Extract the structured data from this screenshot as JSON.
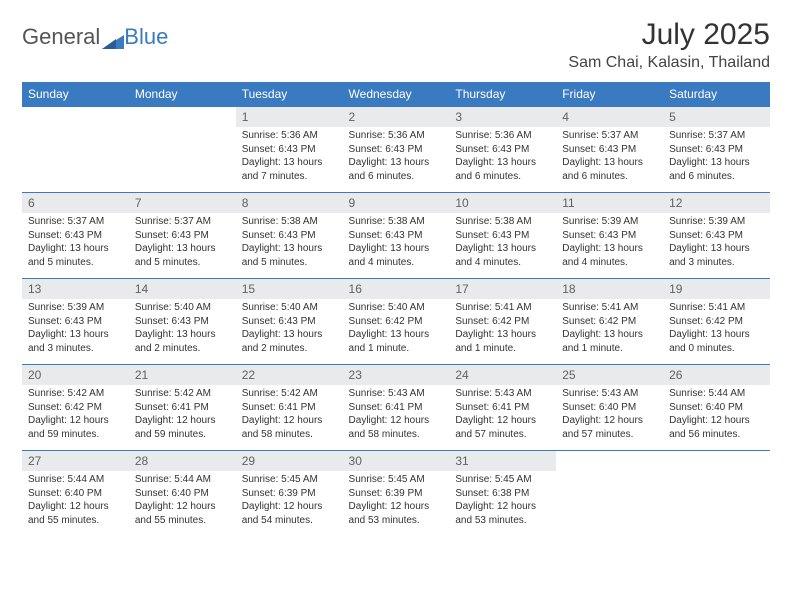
{
  "brand": {
    "part1": "General",
    "part2": "Blue"
  },
  "title": "July 2025",
  "location": "Sam Chai, Kalasin, Thailand",
  "colors": {
    "header_bg": "#3a7ac0",
    "header_text": "#ffffff",
    "daynum_bg": "#e9eaeb",
    "daynum_text": "#616161",
    "border": "#3a7ac0",
    "body_text": "#333333",
    "title_text": "#333333"
  },
  "day_headers": [
    "Sunday",
    "Monday",
    "Tuesday",
    "Wednesday",
    "Thursday",
    "Friday",
    "Saturday"
  ],
  "weeks": [
    [
      {
        "n": "",
        "empty": true
      },
      {
        "n": "",
        "empty": true
      },
      {
        "n": "1",
        "sunrise": "Sunrise: 5:36 AM",
        "sunset": "Sunset: 6:43 PM",
        "daylight": "Daylight: 13 hours and 7 minutes."
      },
      {
        "n": "2",
        "sunrise": "Sunrise: 5:36 AM",
        "sunset": "Sunset: 6:43 PM",
        "daylight": "Daylight: 13 hours and 6 minutes."
      },
      {
        "n": "3",
        "sunrise": "Sunrise: 5:36 AM",
        "sunset": "Sunset: 6:43 PM",
        "daylight": "Daylight: 13 hours and 6 minutes."
      },
      {
        "n": "4",
        "sunrise": "Sunrise: 5:37 AM",
        "sunset": "Sunset: 6:43 PM",
        "daylight": "Daylight: 13 hours and 6 minutes."
      },
      {
        "n": "5",
        "sunrise": "Sunrise: 5:37 AM",
        "sunset": "Sunset: 6:43 PM",
        "daylight": "Daylight: 13 hours and 6 minutes."
      }
    ],
    [
      {
        "n": "6",
        "sunrise": "Sunrise: 5:37 AM",
        "sunset": "Sunset: 6:43 PM",
        "daylight": "Daylight: 13 hours and 5 minutes."
      },
      {
        "n": "7",
        "sunrise": "Sunrise: 5:37 AM",
        "sunset": "Sunset: 6:43 PM",
        "daylight": "Daylight: 13 hours and 5 minutes."
      },
      {
        "n": "8",
        "sunrise": "Sunrise: 5:38 AM",
        "sunset": "Sunset: 6:43 PM",
        "daylight": "Daylight: 13 hours and 5 minutes."
      },
      {
        "n": "9",
        "sunrise": "Sunrise: 5:38 AM",
        "sunset": "Sunset: 6:43 PM",
        "daylight": "Daylight: 13 hours and 4 minutes."
      },
      {
        "n": "10",
        "sunrise": "Sunrise: 5:38 AM",
        "sunset": "Sunset: 6:43 PM",
        "daylight": "Daylight: 13 hours and 4 minutes."
      },
      {
        "n": "11",
        "sunrise": "Sunrise: 5:39 AM",
        "sunset": "Sunset: 6:43 PM",
        "daylight": "Daylight: 13 hours and 4 minutes."
      },
      {
        "n": "12",
        "sunrise": "Sunrise: 5:39 AM",
        "sunset": "Sunset: 6:43 PM",
        "daylight": "Daylight: 13 hours and 3 minutes."
      }
    ],
    [
      {
        "n": "13",
        "sunrise": "Sunrise: 5:39 AM",
        "sunset": "Sunset: 6:43 PM",
        "daylight": "Daylight: 13 hours and 3 minutes."
      },
      {
        "n": "14",
        "sunrise": "Sunrise: 5:40 AM",
        "sunset": "Sunset: 6:43 PM",
        "daylight": "Daylight: 13 hours and 2 minutes."
      },
      {
        "n": "15",
        "sunrise": "Sunrise: 5:40 AM",
        "sunset": "Sunset: 6:43 PM",
        "daylight": "Daylight: 13 hours and 2 minutes."
      },
      {
        "n": "16",
        "sunrise": "Sunrise: 5:40 AM",
        "sunset": "Sunset: 6:42 PM",
        "daylight": "Daylight: 13 hours and 1 minute."
      },
      {
        "n": "17",
        "sunrise": "Sunrise: 5:41 AM",
        "sunset": "Sunset: 6:42 PM",
        "daylight": "Daylight: 13 hours and 1 minute."
      },
      {
        "n": "18",
        "sunrise": "Sunrise: 5:41 AM",
        "sunset": "Sunset: 6:42 PM",
        "daylight": "Daylight: 13 hours and 1 minute."
      },
      {
        "n": "19",
        "sunrise": "Sunrise: 5:41 AM",
        "sunset": "Sunset: 6:42 PM",
        "daylight": "Daylight: 13 hours and 0 minutes."
      }
    ],
    [
      {
        "n": "20",
        "sunrise": "Sunrise: 5:42 AM",
        "sunset": "Sunset: 6:42 PM",
        "daylight": "Daylight: 12 hours and 59 minutes."
      },
      {
        "n": "21",
        "sunrise": "Sunrise: 5:42 AM",
        "sunset": "Sunset: 6:41 PM",
        "daylight": "Daylight: 12 hours and 59 minutes."
      },
      {
        "n": "22",
        "sunrise": "Sunrise: 5:42 AM",
        "sunset": "Sunset: 6:41 PM",
        "daylight": "Daylight: 12 hours and 58 minutes."
      },
      {
        "n": "23",
        "sunrise": "Sunrise: 5:43 AM",
        "sunset": "Sunset: 6:41 PM",
        "daylight": "Daylight: 12 hours and 58 minutes."
      },
      {
        "n": "24",
        "sunrise": "Sunrise: 5:43 AM",
        "sunset": "Sunset: 6:41 PM",
        "daylight": "Daylight: 12 hours and 57 minutes."
      },
      {
        "n": "25",
        "sunrise": "Sunrise: 5:43 AM",
        "sunset": "Sunset: 6:40 PM",
        "daylight": "Daylight: 12 hours and 57 minutes."
      },
      {
        "n": "26",
        "sunrise": "Sunrise: 5:44 AM",
        "sunset": "Sunset: 6:40 PM",
        "daylight": "Daylight: 12 hours and 56 minutes."
      }
    ],
    [
      {
        "n": "27",
        "sunrise": "Sunrise: 5:44 AM",
        "sunset": "Sunset: 6:40 PM",
        "daylight": "Daylight: 12 hours and 55 minutes."
      },
      {
        "n": "28",
        "sunrise": "Sunrise: 5:44 AM",
        "sunset": "Sunset: 6:40 PM",
        "daylight": "Daylight: 12 hours and 55 minutes."
      },
      {
        "n": "29",
        "sunrise": "Sunrise: 5:45 AM",
        "sunset": "Sunset: 6:39 PM",
        "daylight": "Daylight: 12 hours and 54 minutes."
      },
      {
        "n": "30",
        "sunrise": "Sunrise: 5:45 AM",
        "sunset": "Sunset: 6:39 PM",
        "daylight": "Daylight: 12 hours and 53 minutes."
      },
      {
        "n": "31",
        "sunrise": "Sunrise: 5:45 AM",
        "sunset": "Sunset: 6:38 PM",
        "daylight": "Daylight: 12 hours and 53 minutes."
      },
      {
        "n": "",
        "empty": true
      },
      {
        "n": "",
        "empty": true
      }
    ]
  ]
}
